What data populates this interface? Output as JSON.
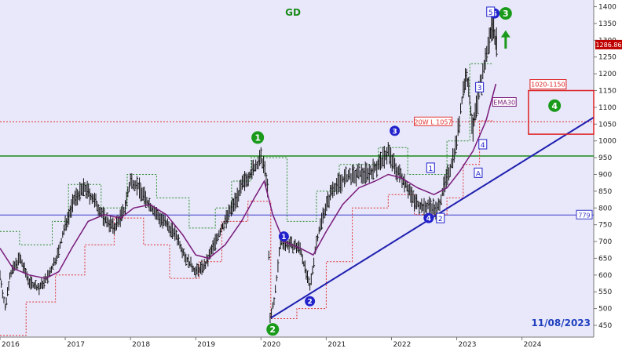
{
  "colors": {
    "background": "#e8e8fa",
    "price_bar": "#111111",
    "ema30": "#7a1a7a",
    "upper_band": "#2a8a2a",
    "lower_band": "#e03030",
    "green_level": "#1a8a1a",
    "blue_level": "#3a3acc",
    "trendline": "#2020b0",
    "marker_green": "#1a9a1a",
    "marker_blue": "#2222cc",
    "box_red": "#dd2222",
    "date_text": "#1f3fbf",
    "title_text": "#1a8a1a"
  },
  "chart_data": {
    "type": "ohlc",
    "title": "GD",
    "date_stamp": "11/08/2023",
    "x_ticks": [
      "2016",
      "2017",
      "2018",
      "2019",
      "2020",
      "2021",
      "2022",
      "2023",
      "2024"
    ],
    "x_range": [
      2016.0,
      2025.1
    ],
    "ylim": [
      415,
      1420
    ],
    "y_ticks": [
      450,
      500,
      550,
      600,
      650,
      700,
      750,
      800,
      850,
      900,
      950,
      1000,
      1050,
      1100,
      1150,
      1200,
      1250,
      1300,
      1350,
      1400
    ],
    "price_series": [
      [
        2016.0,
        600
      ],
      [
        2016.08,
        500
      ],
      [
        2016.15,
        600
      ],
      [
        2016.3,
        650
      ],
      [
        2016.45,
        580
      ],
      [
        2016.6,
        560
      ],
      [
        2016.75,
        600
      ],
      [
        2016.9,
        670
      ],
      [
        2017.0,
        750
      ],
      [
        2017.15,
        830
      ],
      [
        2017.3,
        860
      ],
      [
        2017.45,
        820
      ],
      [
        2017.6,
        770
      ],
      [
        2017.75,
        740
      ],
      [
        2017.9,
        790
      ],
      [
        2018.0,
        880
      ],
      [
        2018.1,
        870
      ],
      [
        2018.25,
        820
      ],
      [
        2018.4,
        780
      ],
      [
        2018.55,
        750
      ],
      [
        2018.7,
        720
      ],
      [
        2018.85,
        650
      ],
      [
        2019.0,
        610
      ],
      [
        2019.15,
        630
      ],
      [
        2019.3,
        700
      ],
      [
        2019.45,
        760
      ],
      [
        2019.6,
        820
      ],
      [
        2019.75,
        880
      ],
      [
        2019.9,
        920
      ],
      [
        2020.0,
        945
      ],
      [
        2020.04,
        930
      ],
      [
        2020.1,
        860
      ],
      [
        2020.14,
        470
      ],
      [
        2020.2,
        520
      ],
      [
        2020.3,
        700
      ],
      [
        2020.45,
        690
      ],
      [
        2020.6,
        680
      ],
      [
        2020.75,
        560
      ],
      [
        2020.85,
        700
      ],
      [
        2020.95,
        780
      ],
      [
        2021.1,
        860
      ],
      [
        2021.3,
        890
      ],
      [
        2021.5,
        900
      ],
      [
        2021.7,
        910
      ],
      [
        2021.85,
        940
      ],
      [
        2021.95,
        970
      ],
      [
        2022.05,
        920
      ],
      [
        2022.2,
        880
      ],
      [
        2022.35,
        820
      ],
      [
        2022.5,
        800
      ],
      [
        2022.6,
        810
      ],
      [
        2022.7,
        790
      ],
      [
        2022.8,
        860
      ],
      [
        2022.9,
        920
      ],
      [
        2023.0,
        1000
      ],
      [
        2023.1,
        1150
      ],
      [
        2023.15,
        1200
      ],
      [
        2023.2,
        1120
      ],
      [
        2023.25,
        1030
      ],
      [
        2023.3,
        1100
      ],
      [
        2023.4,
        1200
      ],
      [
        2023.5,
        1300
      ],
      [
        2023.55,
        1350
      ],
      [
        2023.6,
        1300
      ],
      [
        2023.62,
        1287
      ]
    ],
    "ema30_series": [
      [
        2016.0,
        680
      ],
      [
        2016.2,
        620
      ],
      [
        2016.45,
        600
      ],
      [
        2016.7,
        590
      ],
      [
        2016.9,
        610
      ],
      [
        2017.1,
        680
      ],
      [
        2017.35,
        760
      ],
      [
        2017.6,
        780
      ],
      [
        2017.85,
        770
      ],
      [
        2018.05,
        800
      ],
      [
        2018.3,
        810
      ],
      [
        2018.55,
        780
      ],
      [
        2018.8,
        720
      ],
      [
        2019.0,
        660
      ],
      [
        2019.2,
        650
      ],
      [
        2019.45,
        690
      ],
      [
        2019.7,
        760
      ],
      [
        2019.9,
        830
      ],
      [
        2020.05,
        880
      ],
      [
        2020.18,
        780
      ],
      [
        2020.35,
        700
      ],
      [
        2020.6,
        680
      ],
      [
        2020.8,
        660
      ],
      [
        2021.0,
        730
      ],
      [
        2021.25,
        810
      ],
      [
        2021.5,
        860
      ],
      [
        2021.75,
        880
      ],
      [
        2021.95,
        900
      ],
      [
        2022.15,
        890
      ],
      [
        2022.4,
        860
      ],
      [
        2022.65,
        840
      ],
      [
        2022.85,
        860
      ],
      [
        2023.05,
        910
      ],
      [
        2023.25,
        970
      ],
      [
        2023.45,
        1060
      ],
      [
        2023.6,
        1170
      ]
    ],
    "upper_band_series": [
      [
        2016.0,
        730
      ],
      [
        2016.3,
        730
      ],
      [
        2016.3,
        690
      ],
      [
        2016.8,
        690
      ],
      [
        2016.8,
        760
      ],
      [
        2017.05,
        760
      ],
      [
        2017.05,
        870
      ],
      [
        2017.55,
        870
      ],
      [
        2017.55,
        800
      ],
      [
        2017.95,
        800
      ],
      [
        2017.95,
        900
      ],
      [
        2018.4,
        900
      ],
      [
        2018.4,
        830
      ],
      [
        2018.9,
        830
      ],
      [
        2018.9,
        740
      ],
      [
        2019.3,
        740
      ],
      [
        2019.3,
        800
      ],
      [
        2019.55,
        800
      ],
      [
        2019.55,
        880
      ],
      [
        2019.85,
        880
      ],
      [
        2019.85,
        950
      ],
      [
        2020.4,
        950
      ],
      [
        2020.4,
        760
      ],
      [
        2020.85,
        760
      ],
      [
        2020.85,
        850
      ],
      [
        2021.2,
        850
      ],
      [
        2021.2,
        930
      ],
      [
        2021.8,
        930
      ],
      [
        2021.8,
        980
      ],
      [
        2022.25,
        980
      ],
      [
        2022.25,
        900
      ],
      [
        2022.85,
        900
      ],
      [
        2022.85,
        1000
      ],
      [
        2023.2,
        1000
      ],
      [
        2023.2,
        1230
      ],
      [
        2023.55,
        1230
      ]
    ],
    "lower_band_series": [
      [
        2016.0,
        420
      ],
      [
        2016.4,
        420
      ],
      [
        2016.4,
        520
      ],
      [
        2016.85,
        520
      ],
      [
        2016.85,
        600
      ],
      [
        2017.3,
        600
      ],
      [
        2017.3,
        690
      ],
      [
        2017.75,
        690
      ],
      [
        2017.75,
        770
      ],
      [
        2018.2,
        770
      ],
      [
        2018.2,
        690
      ],
      [
        2018.6,
        690
      ],
      [
        2018.6,
        590
      ],
      [
        2019.05,
        590
      ],
      [
        2019.05,
        640
      ],
      [
        2019.4,
        640
      ],
      [
        2019.4,
        760
      ],
      [
        2019.8,
        760
      ],
      [
        2019.8,
        820
      ],
      [
        2020.15,
        820
      ],
      [
        2020.15,
        470
      ],
      [
        2020.55,
        470
      ],
      [
        2020.55,
        500
      ],
      [
        2021.0,
        500
      ],
      [
        2021.0,
        640
      ],
      [
        2021.4,
        640
      ],
      [
        2021.4,
        800
      ],
      [
        2021.95,
        800
      ],
      [
        2021.95,
        840
      ],
      [
        2022.35,
        840
      ],
      [
        2022.35,
        780
      ],
      [
        2022.85,
        780
      ],
      [
        2022.85,
        830
      ],
      [
        2023.1,
        830
      ],
      [
        2023.1,
        930
      ],
      [
        2023.35,
        930
      ],
      [
        2023.35,
        1060
      ],
      [
        2023.55,
        1060
      ]
    ],
    "horizontal_levels": [
      {
        "y": 1057,
        "label": "20W L 1057",
        "style": "dotted-red"
      },
      {
        "y": 955,
        "label": "",
        "style": "solid-green"
      },
      {
        "y": 779,
        "label": "779",
        "style": "solid-blue"
      }
    ],
    "trendline": {
      "from": [
        2020.15,
        472
      ],
      "to": [
        2025.1,
        1070
      ]
    },
    "target_box": {
      "label": "1020-1150",
      "x_from": 2024.1,
      "x_to": 2025.1,
      "y_low": 1020,
      "y_high": 1150
    },
    "ema_label": "EMA30",
    "last_price_label": "1286.86",
    "trendline_label": "A",
    "wave_labels": [
      {
        "text": "1",
        "x": 2019.95,
        "y": 1010,
        "style": "green-circle"
      },
      {
        "text": "2",
        "x": 2020.18,
        "y": 438,
        "style": "green-circle"
      },
      {
        "text": "3",
        "x": 2023.75,
        "y": 1380,
        "style": "green-circle"
      },
      {
        "text": "4",
        "x": 2024.5,
        "y": 1105,
        "style": "green-circle"
      },
      {
        "text": "1",
        "x": 2020.35,
        "y": 715,
        "style": "blue-circle"
      },
      {
        "text": "2",
        "x": 2020.75,
        "y": 522,
        "style": "blue-circle"
      },
      {
        "text": "3",
        "x": 2022.05,
        "y": 1030,
        "style": "blue-circle"
      },
      {
        "text": "4",
        "x": 2022.57,
        "y": 770,
        "style": "blue-circle"
      },
      {
        "text": "5",
        "x": 2023.58,
        "y": 1380,
        "style": "blue-circle"
      },
      {
        "text": "1",
        "x": 2022.6,
        "y": 920,
        "style": "blue-box"
      },
      {
        "text": "2",
        "x": 2022.75,
        "y": 770,
        "style": "blue-box"
      },
      {
        "text": "3",
        "x": 2023.35,
        "y": 1160,
        "style": "blue-box"
      },
      {
        "text": "4",
        "x": 2023.4,
        "y": 990,
        "style": "blue-box"
      },
      {
        "text": "5",
        "x": 2023.52,
        "y": 1385,
        "style": "blue-box"
      }
    ],
    "arrow": {
      "x": 2023.75,
      "y_from": 1275,
      "y_to": 1325,
      "direction": "up"
    }
  }
}
